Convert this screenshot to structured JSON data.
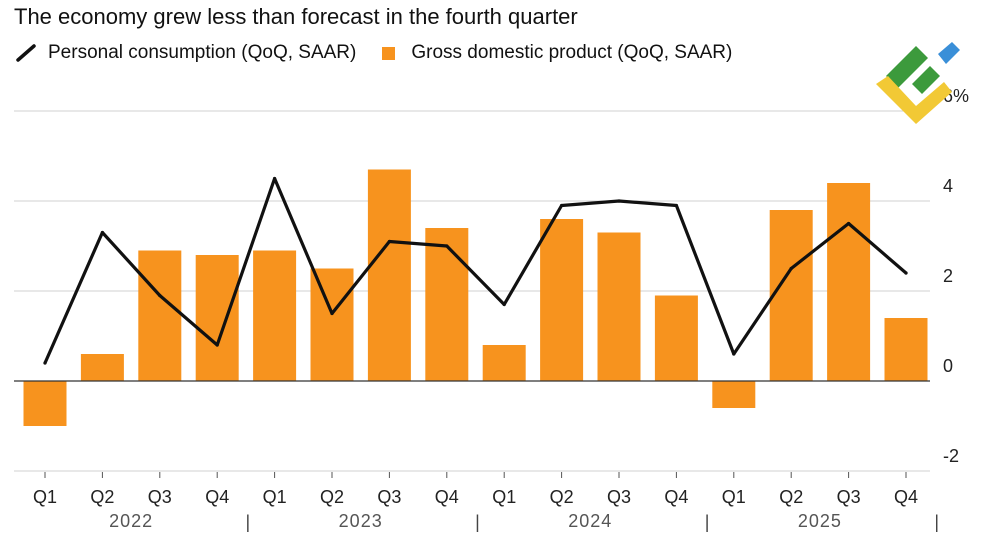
{
  "title": "The economy grew less than forecast in the fourth quarter",
  "legend": {
    "line_label": "Personal consumption (QoQ, SAAR)",
    "bar_label": "Gross domestic product (QoQ, SAAR)"
  },
  "colors": {
    "bar": "#f7931e",
    "line": "#111111",
    "grid": "#d0d0d0",
    "axis_text": "#222222",
    "logo_green": "#3c9a3c",
    "logo_yellow": "#f2c935",
    "logo_blue": "#3a8fd8"
  },
  "logo_name": "lite-finance-logo-icon",
  "chart_data": {
    "type": "bar",
    "title": "The economy grew less than forecast in the fourth quarter",
    "xlabel": "",
    "ylabel": "",
    "ylim": [
      -2,
      6
    ],
    "yticks": [
      -2,
      0,
      2,
      4,
      6
    ],
    "ytick_labels": [
      "-2",
      "0",
      "2",
      "4",
      "6%"
    ],
    "grid": true,
    "legend_position": "top-left",
    "categories": [
      "Q1",
      "Q2",
      "Q3",
      "Q4",
      "Q1",
      "Q2",
      "Q3",
      "Q4",
      "Q1",
      "Q2",
      "Q3",
      "Q4",
      "Q1",
      "Q2",
      "Q3",
      "Q4"
    ],
    "years": [
      "2022",
      "2023",
      "2024",
      "2025"
    ],
    "year_separator": "|",
    "series": [
      {
        "name": "Gross domestic product (QoQ, SAAR)",
        "type": "bar",
        "values": [
          -1.0,
          0.6,
          2.9,
          2.8,
          2.9,
          2.5,
          4.7,
          3.4,
          0.8,
          3.6,
          3.3,
          1.9,
          -0.6,
          3.8,
          4.4,
          1.4
        ]
      },
      {
        "name": "Personal consumption (QoQ, SAAR)",
        "type": "line",
        "values": [
          0.4,
          3.3,
          1.9,
          0.8,
          4.5,
          1.5,
          3.1,
          3.0,
          1.7,
          3.9,
          4.0,
          3.9,
          0.6,
          2.5,
          3.5,
          2.4
        ]
      }
    ]
  }
}
